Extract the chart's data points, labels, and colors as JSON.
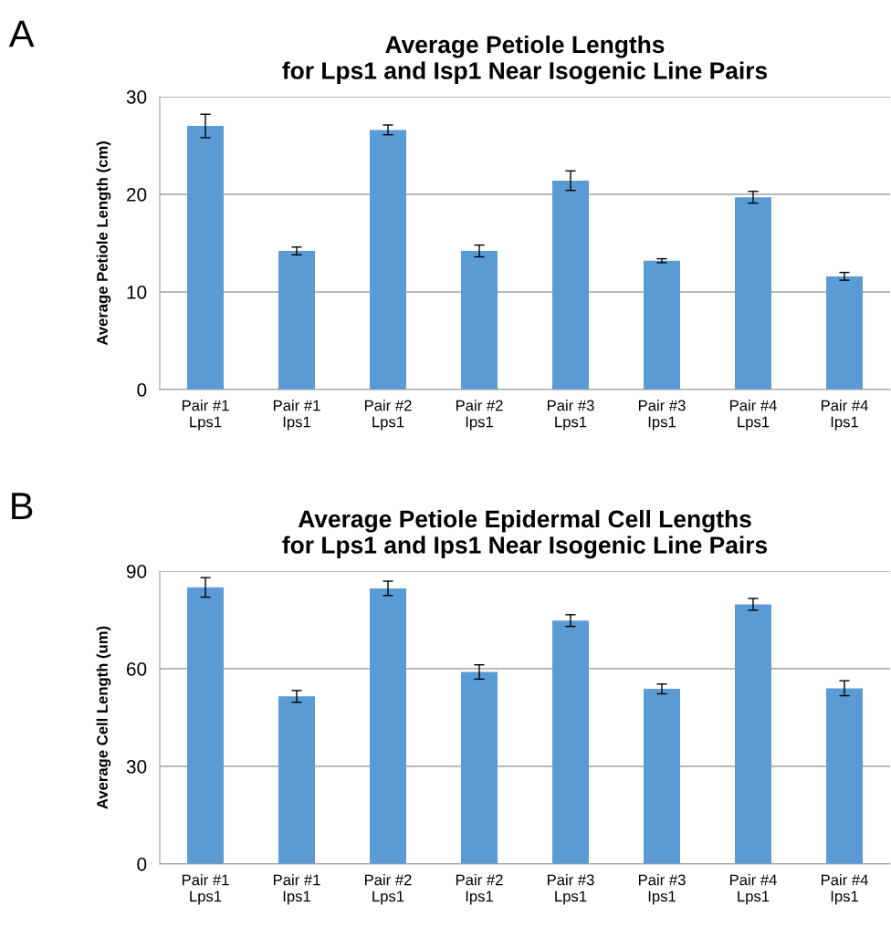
{
  "chart_data": [
    {
      "type": "bar",
      "title": "Average Petiole Lengths\nfor Lps1 and Isp1 Near Isogenic Line Pairs",
      "ylabel": "Average Petiole Length (cm)",
      "annotations": [
        "A"
      ],
      "categories": [
        "Pair #1\nLps1",
        "Pair #1\nIps1",
        "Pair #2\nLps1",
        "Pair #2\nIps1",
        "Pair #3\nLps1",
        "Pair #3\nIps1",
        "Pair #4\nLps1",
        "Pair #4\nIps1"
      ],
      "values": [
        27.0,
        14.2,
        26.6,
        14.2,
        21.4,
        13.2,
        19.7,
        11.6
      ],
      "errors": [
        1.2,
        0.4,
        0.5,
        0.6,
        1.0,
        0.2,
        0.6,
        0.4
      ],
      "color": "#5b9bd5",
      "ylim": [
        0,
        30
      ],
      "yticks": [
        0,
        10,
        20,
        30
      ],
      "grid": "y"
    },
    {
      "type": "bar",
      "title": "Average Petiole Epidermal Cell Lengths\nfor Lps1 and Ips1 Near Isogenic Line Pairs",
      "ylabel": "Average Cell Length (um)",
      "annotations": [
        "B"
      ],
      "categories": [
        "Pair #1\nLps1",
        "Pair #1\nIps1",
        "Pair #2\nLps1",
        "Pair #2\nIps1",
        "Pair #3\nLps1",
        "Pair #3\nIps1",
        "Pair #4\nLps1",
        "Pair #4\nIps1"
      ],
      "values": [
        85,
        51.5,
        84.7,
        59,
        74.8,
        53.8,
        79.8,
        54
      ],
      "errors": [
        3,
        1.8,
        2.2,
        2.2,
        1.8,
        1.5,
        1.8,
        2.3
      ],
      "color": "#5b9bd5",
      "ylim": [
        0,
        90
      ],
      "yticks": [
        0,
        30,
        60,
        90
      ],
      "grid": "y"
    }
  ]
}
